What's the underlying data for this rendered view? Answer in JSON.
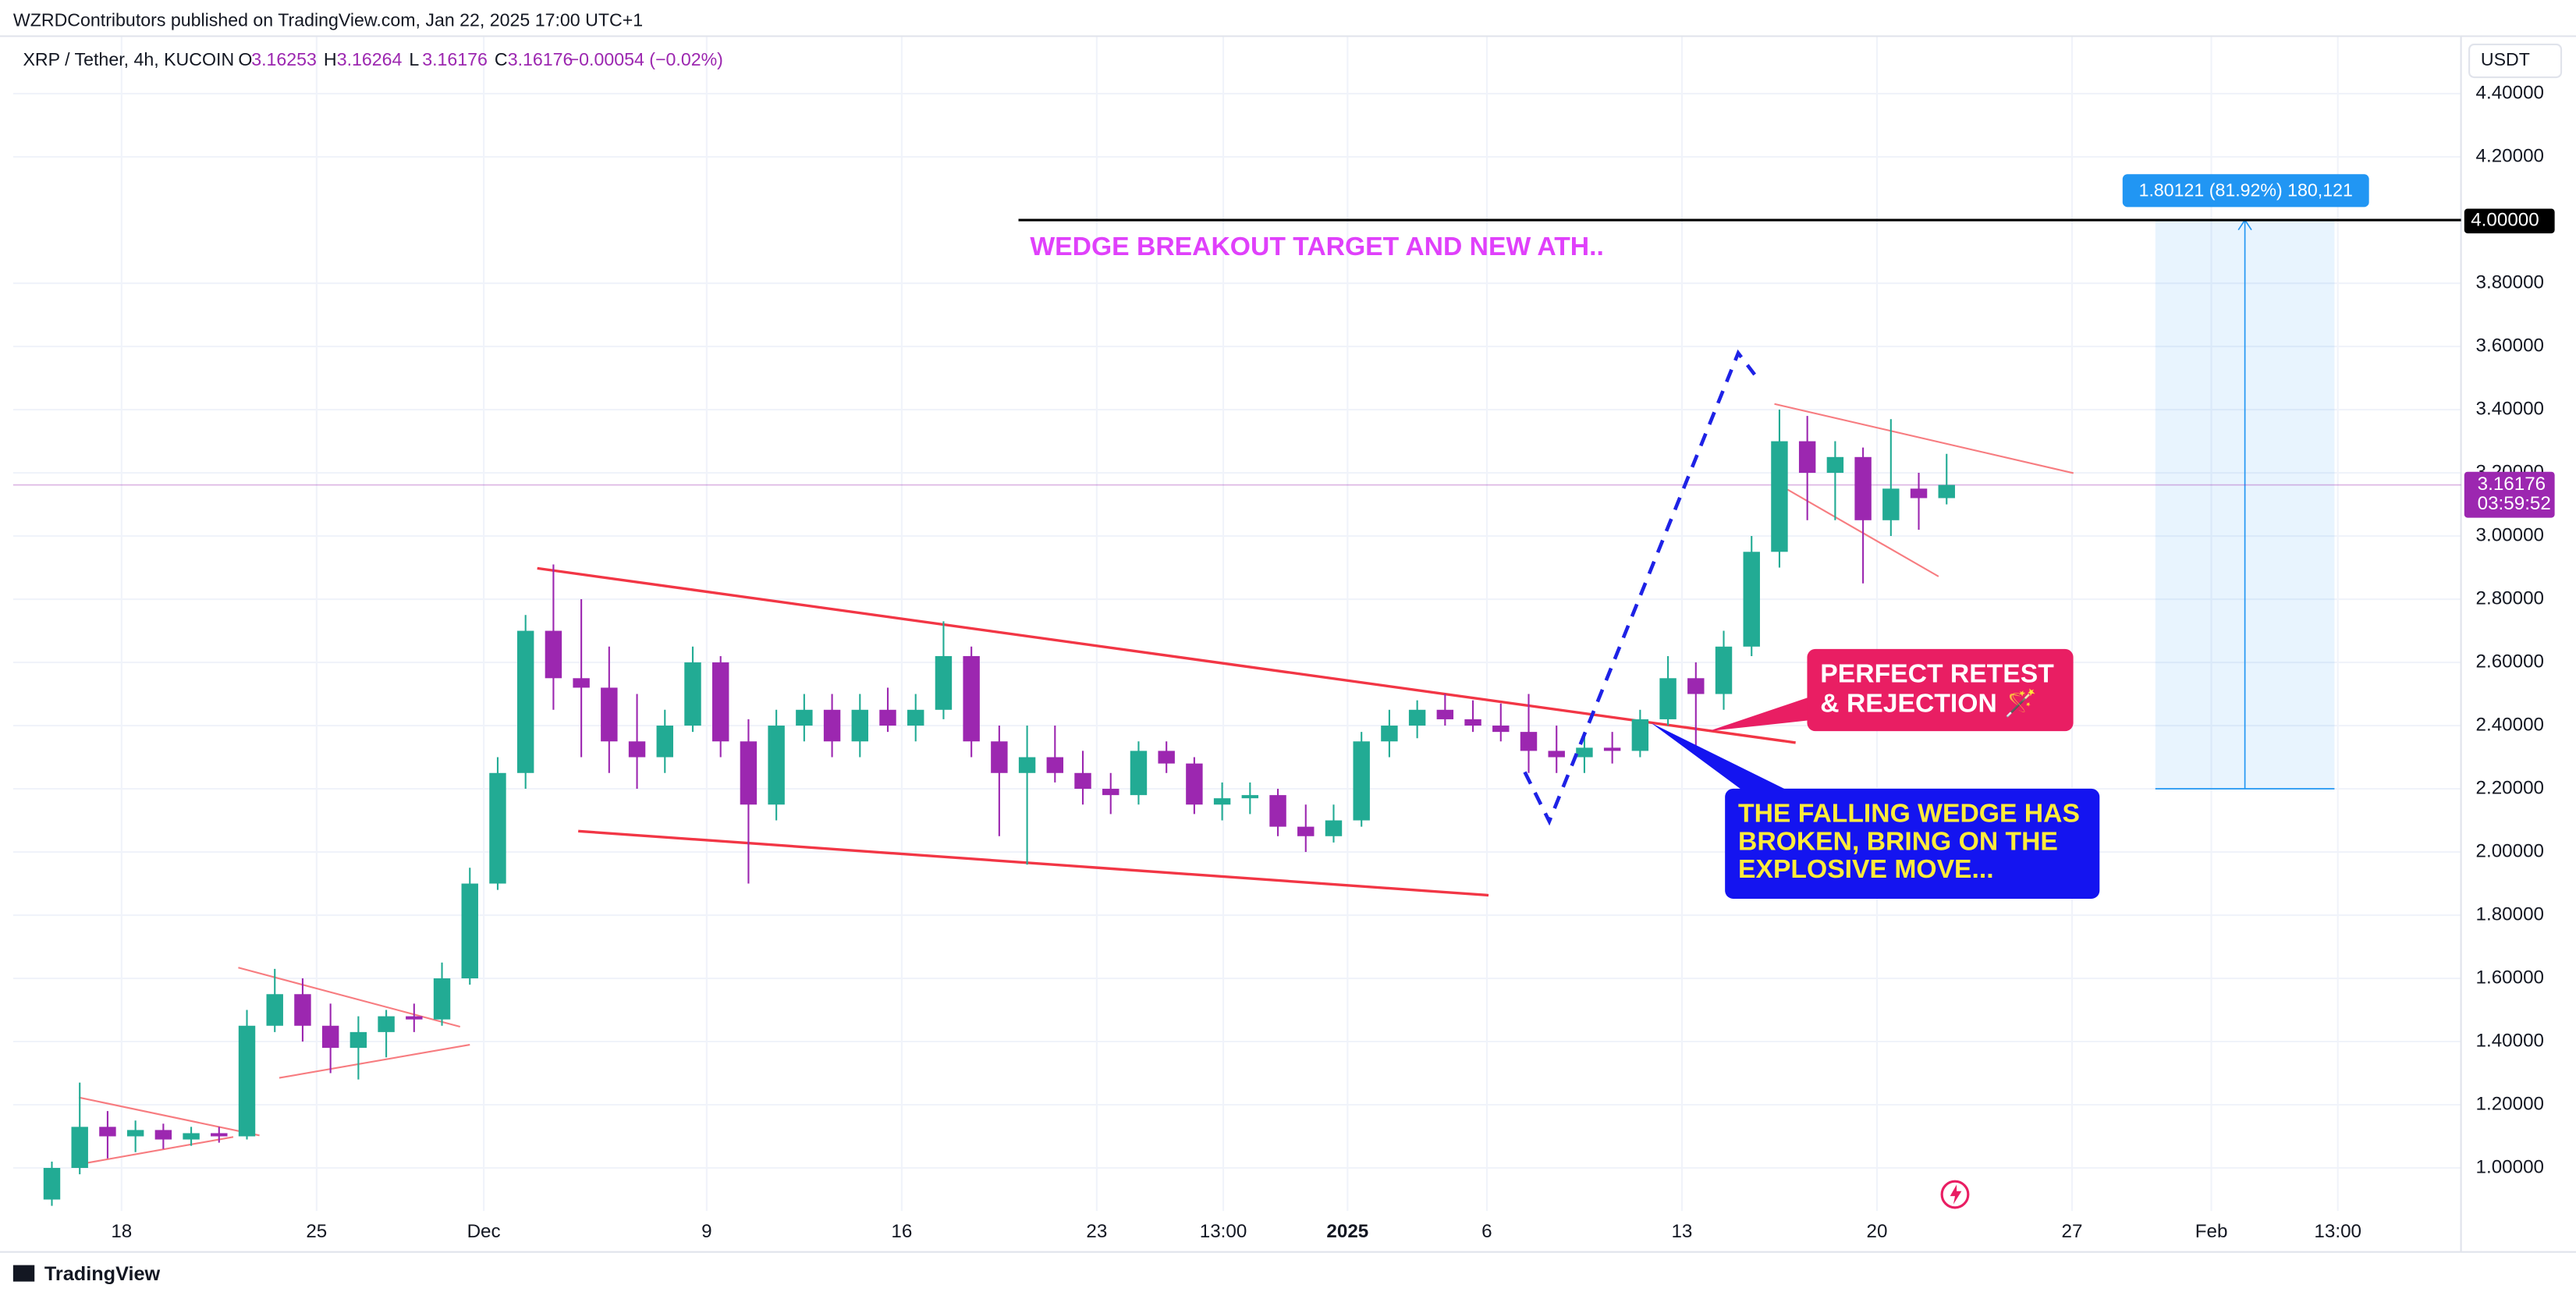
{
  "header": {
    "published": "WZRDContributors published on TradingView.com, Jan 22, 2025 17:00 UTC+1",
    "symbol": "XRP / Tether, 4h, KUCOIN",
    "ohlc": [
      {
        "label": "O",
        "value": "3.16253"
      },
      {
        "label": "H",
        "value": "3.16264"
      },
      {
        "label": "L",
        "value": "3.16176"
      },
      {
        "label": "C",
        "value": "3.16176"
      }
    ],
    "change": "−0.00054 (−0.02%)"
  },
  "chart_data": {
    "type": "candlestick",
    "x": [
      15.5,
      16.5,
      17.5,
      18.5,
      19.5,
      20.5,
      21.5,
      22.5,
      23.5,
      24.5,
      25.5,
      26.5,
      27.5,
      28.5,
      29.5,
      30.5,
      31.5,
      32.5,
      33.5,
      34.5,
      35.5,
      36.5,
      37.5,
      38.5,
      39.5,
      40.5,
      41.5,
      42.5,
      43.5,
      44.5,
      45.5,
      46.5,
      47.5,
      48.5,
      49.5,
      50.5,
      51.5,
      52.5,
      53.5,
      54.5,
      55.5,
      56.5,
      57.5,
      58.5,
      59.5,
      60.5,
      61.5,
      62.5,
      63.5,
      64.5,
      65.5,
      66.5,
      67.5,
      68.5,
      69.5,
      70.5,
      71.5,
      72.5,
      73.5,
      74.5,
      75.5,
      76.5,
      77.5,
      78.5,
      79.5,
      80.5,
      81.5,
      82.5,
      83.5
    ],
    "open": [
      0.9,
      1.0,
      1.13,
      1.1,
      1.12,
      1.09,
      1.11,
      1.1,
      1.45,
      1.55,
      1.45,
      1.38,
      1.43,
      1.48,
      1.47,
      1.6,
      1.9,
      2.25,
      2.7,
      2.55,
      2.52,
      2.35,
      2.3,
      2.4,
      2.6,
      2.35,
      2.15,
      2.4,
      2.45,
      2.35,
      2.45,
      2.4,
      2.45,
      2.62,
      2.35,
      2.25,
      2.3,
      2.25,
      2.2,
      2.18,
      2.32,
      2.28,
      2.15,
      2.17,
      2.18,
      2.08,
      2.05,
      2.1,
      2.35,
      2.4,
      2.45,
      2.42,
      2.4,
      2.38,
      2.32,
      2.3,
      2.33,
      2.32,
      2.42,
      2.55,
      2.5,
      2.65,
      2.95,
      3.3,
      3.2,
      3.25,
      3.05,
      3.15,
      3.12
    ],
    "high": [
      1.02,
      1.27,
      1.18,
      1.15,
      1.14,
      1.13,
      1.13,
      1.5,
      1.63,
      1.6,
      1.52,
      1.48,
      1.5,
      1.52,
      1.65,
      1.95,
      2.3,
      2.75,
      2.91,
      2.8,
      2.65,
      2.5,
      2.45,
      2.65,
      2.62,
      2.42,
      2.45,
      2.5,
      2.5,
      2.5,
      2.52,
      2.5,
      2.73,
      2.65,
      2.4,
      2.4,
      2.4,
      2.32,
      2.25,
      2.35,
      2.35,
      2.3,
      2.22,
      2.22,
      2.2,
      2.15,
      2.15,
      2.38,
      2.45,
      2.48,
      2.5,
      2.48,
      2.47,
      2.5,
      2.4,
      2.38,
      2.38,
      2.45,
      2.62,
      2.6,
      2.7,
      3.0,
      3.4,
      3.38,
      3.3,
      3.28,
      3.37,
      3.2,
      3.26
    ],
    "low": [
      0.88,
      0.98,
      1.03,
      1.05,
      1.06,
      1.07,
      1.08,
      1.09,
      1.43,
      1.4,
      1.3,
      1.28,
      1.35,
      1.43,
      1.45,
      1.58,
      1.88,
      2.2,
      2.45,
      2.3,
      2.25,
      2.2,
      2.25,
      2.38,
      2.3,
      1.9,
      2.1,
      2.35,
      2.3,
      2.3,
      2.38,
      2.35,
      2.42,
      2.3,
      2.05,
      1.96,
      2.22,
      2.15,
      2.12,
      2.15,
      2.25,
      2.12,
      2.1,
      2.12,
      2.05,
      2.0,
      2.03,
      2.08,
      2.3,
      2.36,
      2.4,
      2.38,
      2.35,
      2.25,
      2.25,
      2.25,
      2.28,
      2.3,
      2.4,
      2.32,
      2.45,
      2.62,
      2.9,
      3.05,
      3.05,
      2.85,
      3.0,
      3.02,
      3.1
    ],
    "close": [
      1.0,
      1.13,
      1.1,
      1.12,
      1.09,
      1.11,
      1.1,
      1.45,
      1.55,
      1.45,
      1.38,
      1.43,
      1.48,
      1.47,
      1.6,
      1.9,
      2.25,
      2.7,
      2.55,
      2.52,
      2.35,
      2.3,
      2.4,
      2.6,
      2.35,
      2.15,
      2.4,
      2.45,
      2.35,
      2.45,
      2.4,
      2.45,
      2.62,
      2.35,
      2.25,
      2.3,
      2.25,
      2.2,
      2.18,
      2.32,
      2.28,
      2.15,
      2.17,
      2.18,
      2.08,
      2.05,
      2.1,
      2.35,
      2.4,
      2.45,
      2.42,
      2.4,
      2.38,
      2.32,
      2.3,
      2.33,
      2.32,
      2.42,
      2.55,
      2.5,
      2.65,
      2.95,
      3.3,
      3.2,
      3.25,
      3.05,
      3.15,
      3.12,
      3.16176
    ],
    "up_color": "#22ab94",
    "down_color": "#9c27b0",
    "xlim": [
      14.11,
      101.96
    ],
    "xticks": [
      18,
      25,
      {
        "value": 31,
        "label": "Dec"
      },
      {
        "value": 39,
        "label": "9"
      },
      {
        "value": 46,
        "label": "16"
      },
      {
        "value": 53,
        "label": "23"
      },
      {
        "value": 57.54,
        "label": "13:00"
      },
      {
        "value": 62,
        "label": "2025"
      },
      {
        "value": 67,
        "label": "6"
      },
      {
        "value": 74,
        "label": "13"
      },
      {
        "value": 81,
        "label": "20"
      },
      {
        "value": 88,
        "label": "27"
      },
      {
        "value": 93,
        "label": "Feb"
      },
      {
        "value": 97.54,
        "label": "13:00"
      }
    ],
    "ylim": [
      0.864,
      4.582
    ],
    "yticks": [
      {
        "value": 1.0,
        "label": "1.00000"
      },
      {
        "value": 1.2,
        "label": "1.20000"
      },
      {
        "value": 1.4,
        "label": "1.40000"
      },
      {
        "value": 1.6,
        "label": "1.60000"
      },
      {
        "value": 1.8,
        "label": "1.80000"
      },
      {
        "value": 2.0,
        "label": "2.00000"
      },
      {
        "value": 2.2,
        "label": "2.20000"
      },
      {
        "value": 2.4,
        "label": "2.40000"
      },
      {
        "value": 2.6,
        "label": "2.60000"
      },
      {
        "value": 2.8,
        "label": "2.80000"
      },
      {
        "value": 3.0,
        "label": "3.00000"
      },
      {
        "value": 3.2,
        "label": "3.20000"
      },
      {
        "value": 3.4,
        "label": "3.40000"
      },
      {
        "value": 3.6,
        "label": "3.60000"
      },
      {
        "value": 3.8,
        "label": "3.80000"
      },
      {
        "value": 4.2,
        "label": "4.20000"
      },
      {
        "value": 4.4,
        "label": "4.40000"
      }
    ],
    "grid": true,
    "currency": "USDT",
    "last_price": {
      "value": 3.16176,
      "label": "3.16176",
      "countdown": "03:59:52",
      "color": "#9c27b0"
    },
    "target": {
      "value": 4,
      "label": "4.00000",
      "from": 50.19,
      "color": "#000000"
    },
    "measure": {
      "x": [
        90.99,
        97.42
      ],
      "y": [
        2.2,
        4
      ],
      "label": "1.80121 (81.92%) 180,121",
      "color": "#2196f3"
    },
    "trendlines": [
      {
        "color": "#f23645",
        "width": 1.6,
        "points": [
          [
            32.92,
            2.898
          ],
          [
            78.08,
            2.346
          ]
        ]
      },
      {
        "color": "#f23645",
        "width": 1.6,
        "points": [
          [
            34.39,
            2.066
          ],
          [
            67.06,
            1.863
          ]
        ]
      },
      {
        "color": "#f77c80",
        "width": 1,
        "points": [
          [
            16.47,
            1.223
          ],
          [
            22.95,
            1.103
          ]
        ]
      },
      {
        "color": "#f77c80",
        "width": 1,
        "points": [
          [
            16.7,
            1.015
          ],
          [
            22.01,
            1.098
          ]
        ]
      },
      {
        "color": "#f77c80",
        "width": 1,
        "points": [
          [
            22.19,
            1.634
          ],
          [
            30.15,
            1.447
          ]
        ]
      },
      {
        "color": "#f77c80",
        "width": 1,
        "points": [
          [
            23.66,
            1.285
          ],
          [
            30.5,
            1.39
          ]
        ]
      },
      {
        "color": "#f77c80",
        "width": 1,
        "points": [
          [
            77.32,
            3.418
          ],
          [
            88.05,
            3.199
          ]
        ]
      },
      {
        "color": "#f77c80",
        "width": 1,
        "points": [
          [
            77.79,
            3.147
          ],
          [
            83.21,
            2.872
          ]
        ]
      }
    ],
    "path": {
      "color": "#1e22e6",
      "dashed": true,
      "points": [
        [
          68.36,
          2.253
        ],
        [
          69.24,
          2.097
        ],
        [
          76.02,
          3.579
        ],
        [
          76.61,
          3.511
        ]
      ]
    },
    "annotations": [
      {
        "lines": [
          "WEDGE BREAKOUT TARGET AND NEW ATH.."
        ],
        "color": "#e040fb"
      },
      {
        "lines": [
          "PERFECT RETEST",
          "& REJECTION 🪄"
        ],
        "color": "#ffffff",
        "background": "#e91e63"
      },
      {
        "lines": [
          "THE FALLING WEDGE HAS",
          "BROKEN, BRING ON THE",
          "EXPLOSIVE MOVE..."
        ],
        "color": "#ffeb3b",
        "background": "#1414f0"
      }
    ]
  },
  "footer": {
    "brand": "TradingView"
  }
}
